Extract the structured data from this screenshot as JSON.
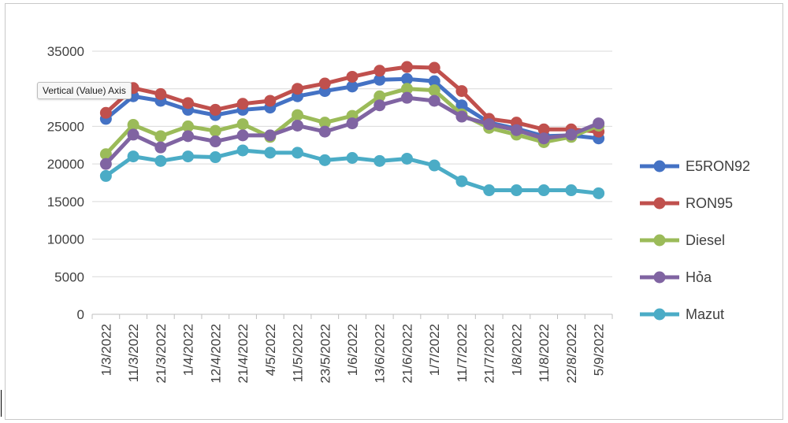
{
  "tooltip": "Vertical (Value) Axis",
  "chart_data": {
    "type": "line",
    "title": "",
    "xlabel": "",
    "ylabel": "",
    "ylim": [
      0,
      35000
    ],
    "y_ticks": [
      0,
      5000,
      10000,
      15000,
      20000,
      25000,
      30000,
      35000
    ],
    "grid": "horizontal",
    "legend_position": "right",
    "categories": [
      "1/3/2022",
      "11/3/2022",
      "21/3/2022",
      "1/4/2022",
      "12/4/2022",
      "21/4/2022",
      "4/5/2022",
      "11/5/2022",
      "23/5/2022",
      "1/6/2022",
      "13/6/2022",
      "21/6/2022",
      "1/7/2022",
      "11/7/2022",
      "21/7/2022",
      "1/8/2022",
      "11/8/2022",
      "22/8/2022",
      "5/9/2022"
    ],
    "series": [
      {
        "name": "E5RON92",
        "color": "#4472c4",
        "values": [
          26000,
          29000,
          28400,
          27200,
          26500,
          27200,
          27500,
          29000,
          29700,
          30300,
          31200,
          31300,
          31000,
          27800,
          25500,
          24700,
          23700,
          23800,
          23400
        ]
      },
      {
        "name": "RON95",
        "color": "#c0504d",
        "values": [
          26800,
          30100,
          29300,
          28100,
          27200,
          28000,
          28400,
          30000,
          30700,
          31600,
          32400,
          32900,
          32800,
          29700,
          26000,
          25500,
          24600,
          24600,
          24300
        ]
      },
      {
        "name": "Diesel",
        "color": "#9bbb59",
        "values": [
          21300,
          25200,
          23700,
          25000,
          24400,
          25300,
          23600,
          26500,
          25500,
          26400,
          29000,
          30000,
          29800,
          26600,
          24800,
          23900,
          22900,
          23600,
          25100
        ]
      },
      {
        "name": "Hỏa",
        "color": "#8064a2",
        "values": [
          20000,
          23900,
          22200,
          23700,
          23000,
          23800,
          23800,
          25100,
          24300,
          25400,
          27800,
          28800,
          28400,
          26300,
          25300,
          24500,
          23400,
          23900,
          25400
        ]
      },
      {
        "name": "Mazut",
        "color": "#4bacc6",
        "values": [
          18400,
          21000,
          20400,
          21000,
          20900,
          21800,
          21500,
          21500,
          20500,
          20800,
          20400,
          20700,
          19800,
          17700,
          16500,
          16500,
          16500,
          16500,
          16100
        ]
      }
    ]
  }
}
